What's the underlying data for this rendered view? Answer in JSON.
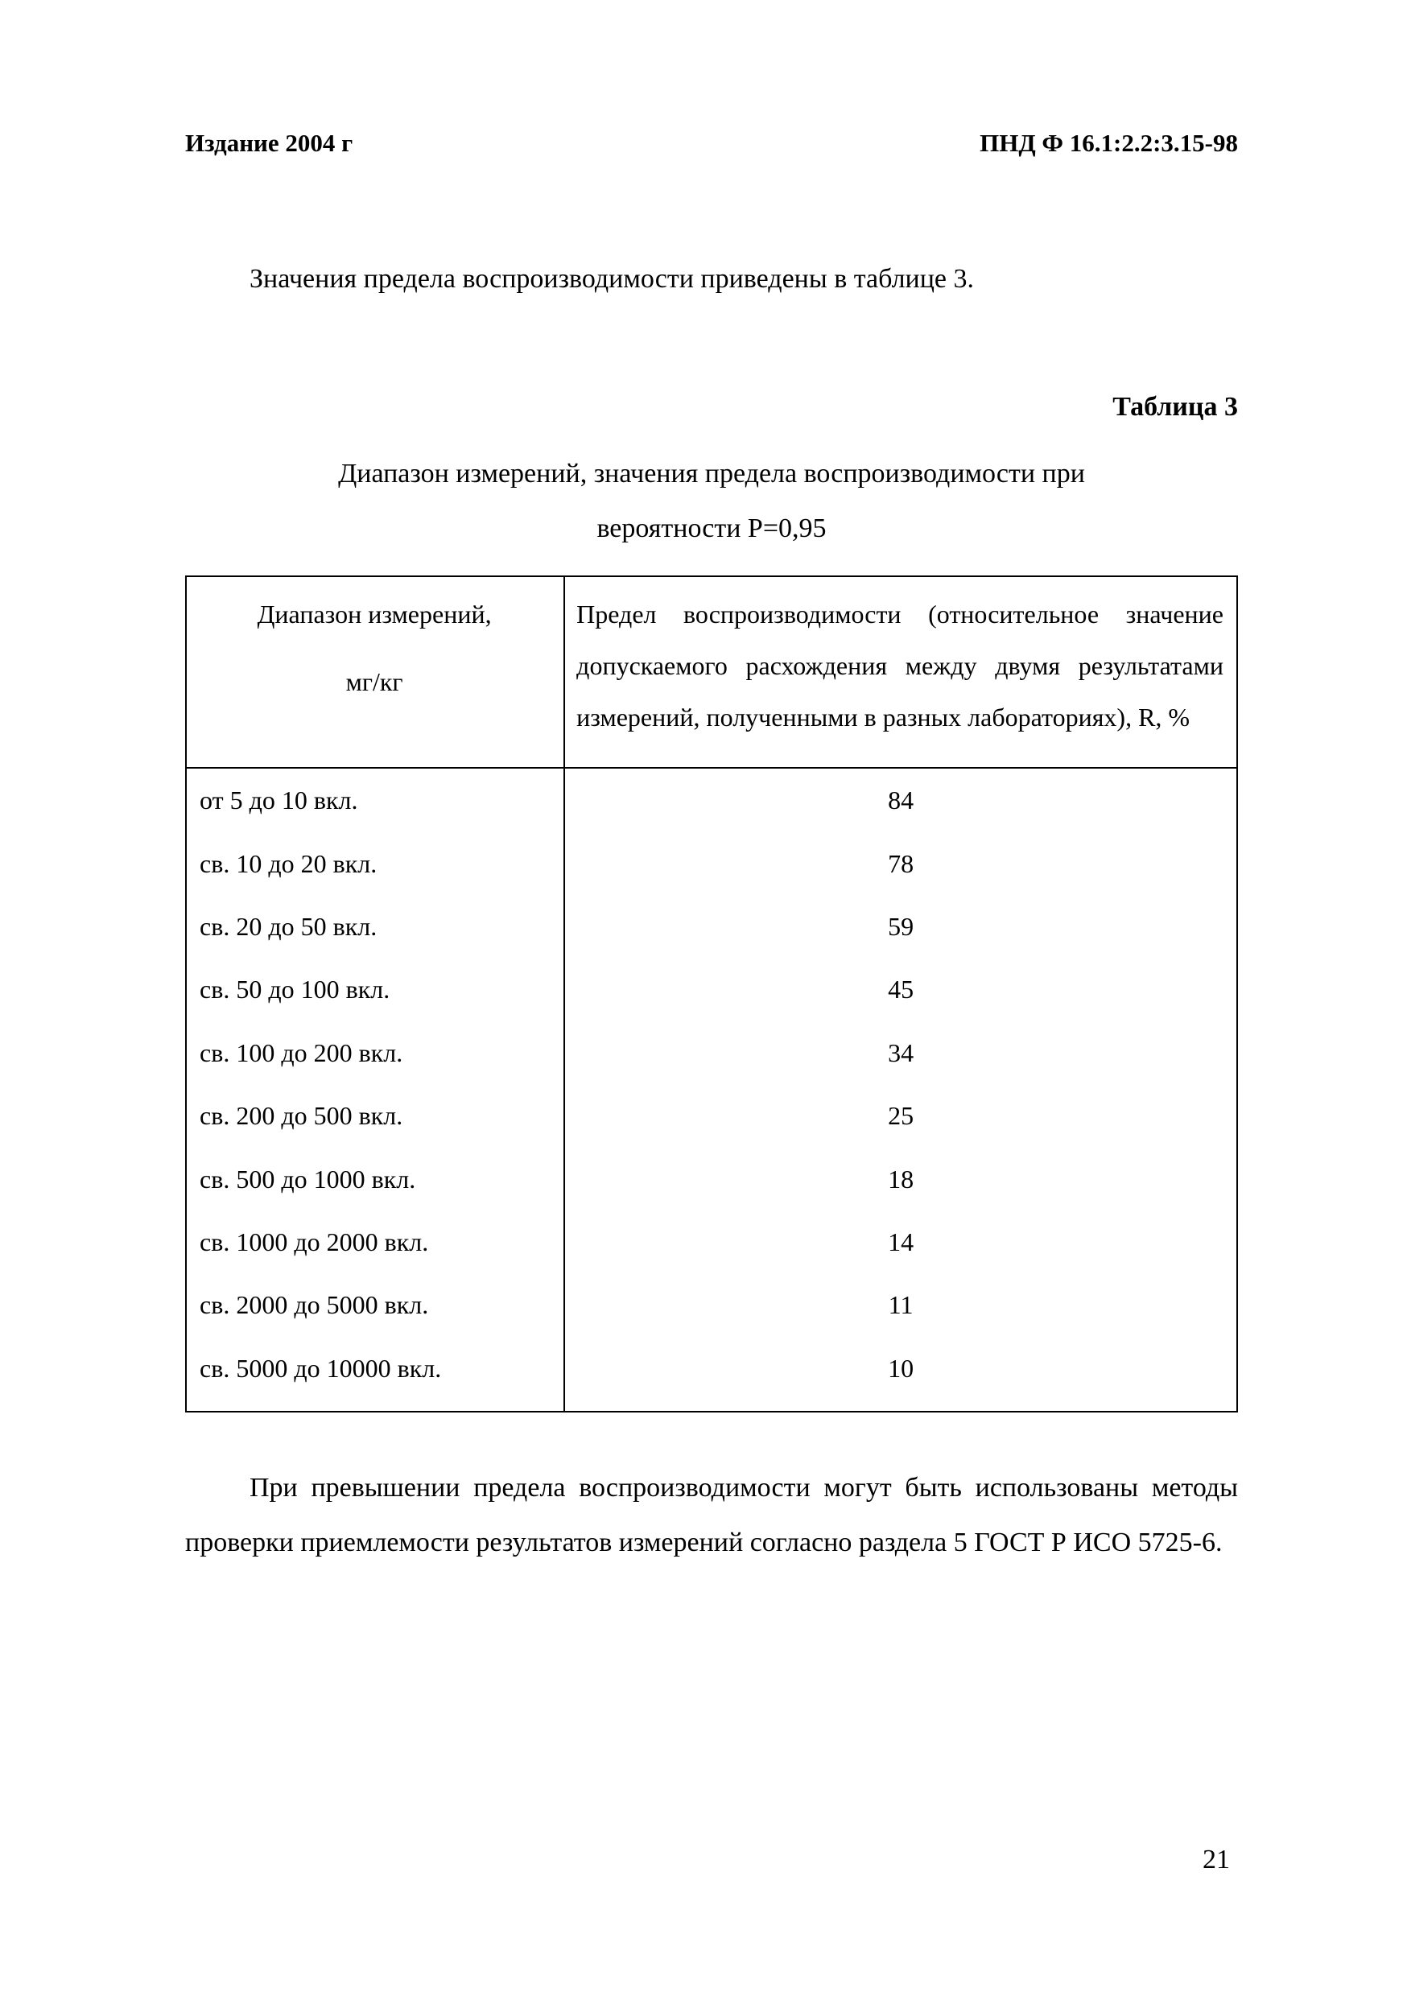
{
  "header": {
    "left": "Издание 2004 г",
    "right": "ПНД Ф 16.1:2.2:3.15-98"
  },
  "intro_text": "Значения предела воспроизводимости приведены в таблице 3.",
  "table": {
    "label": "Таблица 3",
    "caption_line1": "Диапазон измерений, значения предела воспроизводимости при",
    "caption_line2": "вероятности P=0,95",
    "col1_header_line1": "Диапазон измерений,",
    "col1_header_line2": "мг/кг",
    "col2_header": "Предел воспроизводимости (относительное значение допускаемого расхождения между двумя результатами измерений, полученными в разных лабораториях), R, %",
    "rows": [
      {
        "range": "от 5 до 10 вкл.",
        "limit": "84"
      },
      {
        "range": "св. 10 до 20 вкл.",
        "limit": "78"
      },
      {
        "range": "св. 20 до 50 вкл.",
        "limit": "59"
      },
      {
        "range": "св. 50 до 100 вкл.",
        "limit": "45"
      },
      {
        "range": "св. 100 до 200 вкл.",
        "limit": "34"
      },
      {
        "range": "св. 200 до 500 вкл.",
        "limit": "25"
      },
      {
        "range": "св. 500 до 1000 вкл.",
        "limit": "18"
      },
      {
        "range": "св. 1000 до 2000 вкл.",
        "limit": "14"
      },
      {
        "range": "св. 2000 до 5000 вкл.",
        "limit": "11"
      },
      {
        "range": "св. 5000 до 10000 вкл.",
        "limit": "10"
      }
    ]
  },
  "after_text": "При превышении предела воспроизводимости могут быть использованы методы проверки приемлемости результатов измерений согласно раздела 5 ГОСТ Р ИСО 5725-6.",
  "page_number": "21",
  "style": {
    "background_color": "#ffffff",
    "text_color": "#000000",
    "border_color": "#000000",
    "body_fontsize": 34,
    "header_fontsize": 31,
    "table_fontsize": 32
  }
}
